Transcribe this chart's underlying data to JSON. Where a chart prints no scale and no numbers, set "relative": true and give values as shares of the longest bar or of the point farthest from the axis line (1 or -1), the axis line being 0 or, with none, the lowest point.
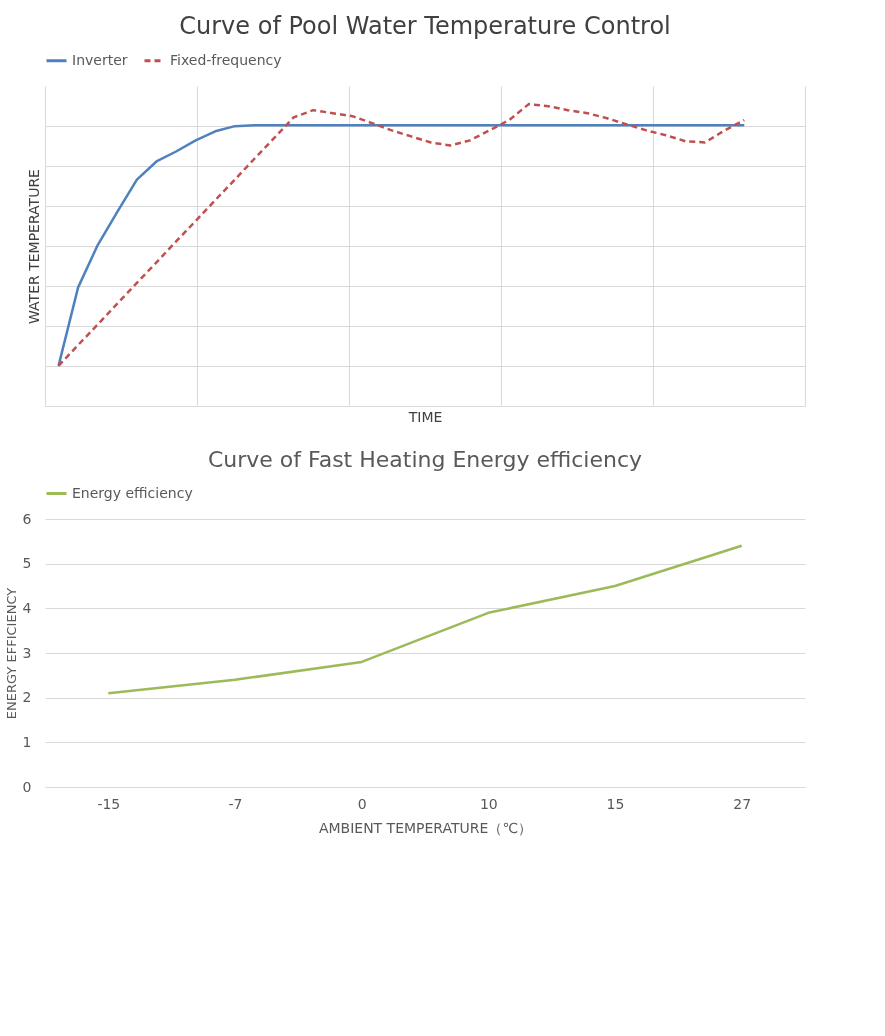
{
  "chart_data": [
    {
      "type": "line",
      "title": "Curve of Pool Water Temperature Control",
      "xlabel": "TIME",
      "ylabel": "WATER TEMPERATURE",
      "relative": true,
      "tick_labels": false,
      "grid": true,
      "legend": "top",
      "categories": [
        null,
        null,
        null,
        null,
        null,
        null,
        null,
        null,
        null,
        null,
        null,
        null,
        null,
        null,
        null,
        null,
        null,
        null,
        null,
        null,
        null,
        null,
        null,
        null,
        null,
        null,
        null,
        null,
        null,
        null,
        null,
        null,
        null,
        null,
        null,
        null
      ],
      "series": [
        {
          "name": "Inverter",
          "color": "#4f81bd",
          "line_style": "solid",
          "values": [
            0.133,
            0.393,
            0.533,
            0.643,
            0.75,
            0.81,
            0.843,
            0.88,
            0.91,
            0.927,
            0.93,
            0.93,
            0.93,
            0.93,
            0.93,
            0.93,
            0.93,
            0.93,
            0.93,
            0.93,
            0.93,
            0.93,
            0.93,
            0.93,
            0.93,
            0.93,
            0.93,
            0.93,
            0.93,
            0.93,
            0.93,
            0.93,
            0.93,
            0.93,
            0.93,
            0.93
          ]
        },
        {
          "name": "Fixed-frequency",
          "color": "#c0504d",
          "line_style": "dashed",
          "values": [
            0.133,
            0.202,
            0.27,
            0.339,
            0.408,
            0.476,
            0.545,
            0.613,
            0.682,
            0.75,
            0.819,
            0.887,
            0.956,
            0.98,
            0.97,
            0.96,
            0.937,
            0.913,
            0.893,
            0.873,
            0.863,
            0.88,
            0.913,
            0.947,
            1.0,
            0.993,
            0.98,
            0.97,
            0.953,
            0.933,
            0.913,
            0.897,
            0.877,
            0.873,
            0.913,
            0.947
          ]
        }
      ]
    },
    {
      "type": "line",
      "title": "Curve of Fast Heating Energy efficiency",
      "xlabel": "AMBIENT TEMPERATURE（℃）",
      "ylabel": "ENERGY EFFICIENCY",
      "grid": "y",
      "legend": "top",
      "categories": [
        "-15",
        "-7",
        "0",
        "10",
        "15",
        "27"
      ],
      "ylim": [
        0,
        6
      ],
      "yticks": [
        0,
        1,
        2,
        3,
        4,
        5,
        6
      ],
      "series": [
        {
          "name": "Energy efficiency",
          "color": "#9bbb59",
          "line_style": "solid",
          "values": [
            2.1,
            2.4,
            2.8,
            3.9,
            4.5,
            5.4
          ]
        }
      ]
    }
  ]
}
